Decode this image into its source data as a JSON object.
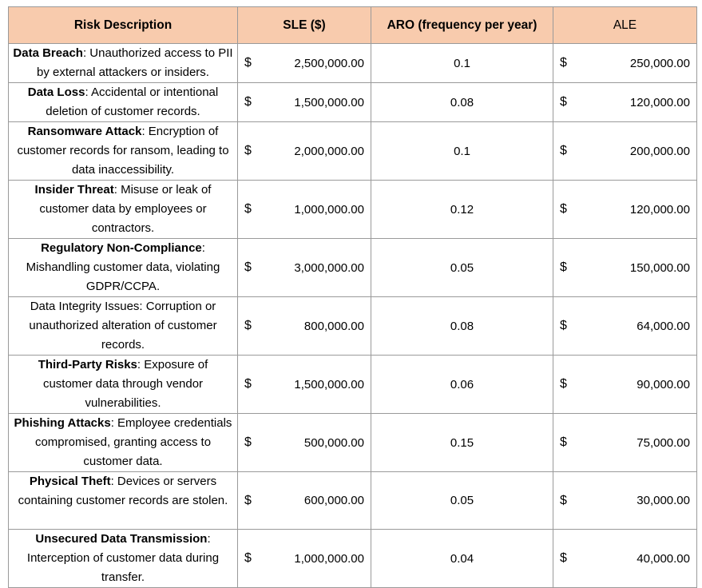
{
  "header": {
    "risk_description": "Risk Description",
    "sle": "SLE ($)",
    "aro": "ARO (frequency per year)",
    "ale": "ALE"
  },
  "currency_symbol": "$",
  "colors": {
    "header_bg": "#f8cbad",
    "grid": "#9a9a9a"
  },
  "rows": [
    {
      "title": "Data Breach",
      "title_bold": true,
      "text": ": Unauthorized access to PII by external attackers or insiders.",
      "sle": "2,500,000.00",
      "aro": "0.1",
      "ale": "250,000.00"
    },
    {
      "title": "Data Loss",
      "title_bold": true,
      "text": ": Accidental or intentional deletion of customer records.",
      "sle": "1,500,000.00",
      "aro": "0.08",
      "ale": "120,000.00"
    },
    {
      "title": "Ransomware Attack",
      "title_bold": true,
      "text": ": Encryption of customer records for ransom, leading to data inaccessibility.",
      "sle": "2,000,000.00",
      "aro": "0.1",
      "ale": "200,000.00"
    },
    {
      "title": "Insider Threat",
      "title_bold": true,
      "text": ": Misuse or leak of customer data by employees or contractors.",
      "sle": "1,000,000.00",
      "aro": "0.12",
      "ale": "120,000.00"
    },
    {
      "title": "Regulatory Non-Compliance",
      "title_bold": true,
      "text": ": Mishandling customer data, violating GDPR/CCPA.",
      "sle": "3,000,000.00",
      "aro": "0.05",
      "ale": "150,000.00"
    },
    {
      "title": "Data Integrity Issues",
      "title_bold": false,
      "text": ": Corruption or unauthorized alteration of customer records.",
      "sle": "800,000.00",
      "aro": "0.08",
      "ale": "64,000.00"
    },
    {
      "title": "Third-Party Risks",
      "title_bold": true,
      "text": ": Exposure of customer data through vendor vulnerabilities.",
      "sle": "1,500,000.00",
      "aro": "0.06",
      "ale": "90,000.00"
    },
    {
      "title": "Phishing Attacks",
      "title_bold": true,
      "text": ": Employee credentials compromised, granting access to customer data.",
      "sle": "500,000.00",
      "aro": "0.15",
      "ale": "75,000.00"
    },
    {
      "title": "Physical Theft",
      "title_bold": true,
      "text": ": Devices or servers containing customer records are stolen.",
      "sle": "600,000.00",
      "aro": "0.05",
      "ale": "30,000.00"
    },
    {
      "title": "Unsecured Data Transmission",
      "title_bold": true,
      "text": ": Interception of customer data during transfer.",
      "sle": "1,000,000.00",
      "aro": "0.04",
      "ale": "40,000.00"
    }
  ]
}
